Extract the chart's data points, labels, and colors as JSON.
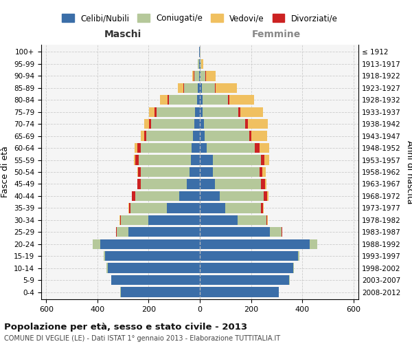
{
  "age_groups": [
    "0-4",
    "5-9",
    "10-14",
    "15-19",
    "20-24",
    "25-29",
    "30-34",
    "35-39",
    "40-44",
    "45-49",
    "50-54",
    "55-59",
    "60-64",
    "65-69",
    "70-74",
    "75-79",
    "80-84",
    "85-89",
    "90-94",
    "95-99",
    "100+"
  ],
  "birth_years": [
    "2008-2012",
    "2003-2007",
    "1998-2002",
    "1993-1997",
    "1988-1992",
    "1983-1987",
    "1978-1982",
    "1973-1977",
    "1968-1972",
    "1963-1967",
    "1958-1962",
    "1953-1957",
    "1948-1952",
    "1943-1947",
    "1938-1942",
    "1933-1937",
    "1928-1932",
    "1923-1927",
    "1918-1922",
    "1913-1917",
    "≤ 1912"
  ],
  "colors": {
    "celibi": "#3b6ea8",
    "coniugati": "#b5c89a",
    "vedovi": "#f0c060",
    "divorziati": "#cc2222"
  },
  "males_celibi": [
    310,
    345,
    360,
    370,
    390,
    280,
    200,
    130,
    80,
    50,
    40,
    35,
    32,
    28,
    22,
    18,
    12,
    8,
    4,
    3,
    2
  ],
  "males_coniugati": [
    1,
    2,
    4,
    5,
    28,
    45,
    108,
    140,
    172,
    182,
    192,
    205,
    198,
    182,
    168,
    150,
    110,
    55,
    18,
    4,
    1
  ],
  "males_vedovi": [
    0,
    0,
    0,
    0,
    1,
    1,
    1,
    1,
    2,
    2,
    4,
    6,
    10,
    12,
    18,
    22,
    32,
    22,
    6,
    1,
    0
  ],
  "males_divorziati": [
    0,
    0,
    0,
    0,
    1,
    2,
    4,
    7,
    13,
    11,
    9,
    11,
    14,
    8,
    9,
    8,
    3,
    2,
    1,
    0,
    0
  ],
  "females_nubili": [
    308,
    350,
    365,
    385,
    430,
    275,
    148,
    98,
    78,
    58,
    52,
    50,
    28,
    20,
    16,
    12,
    10,
    8,
    4,
    2,
    1
  ],
  "females_coniugate": [
    1,
    2,
    4,
    4,
    28,
    44,
    112,
    142,
    172,
    182,
    182,
    188,
    188,
    172,
    162,
    138,
    100,
    52,
    18,
    4,
    1
  ],
  "females_vedove": [
    0,
    0,
    0,
    0,
    1,
    2,
    2,
    2,
    4,
    7,
    14,
    18,
    38,
    62,
    78,
    88,
    98,
    82,
    38,
    7,
    1
  ],
  "females_divorziate": [
    0,
    0,
    0,
    0,
    1,
    2,
    4,
    7,
    14,
    14,
    11,
    14,
    17,
    9,
    11,
    9,
    5,
    2,
    1,
    0,
    0
  ],
  "xlim": 620,
  "title_main": "Popolazione per età, sesso e stato civile - 2013",
  "title_sub": "COMUNE DI VEGLIE (LE) - Dati ISTAT 1° gennaio 2013 - Elaborazione TUTTITALIA.IT",
  "legend_labels": [
    "Celibi/Nubili",
    "Coniugati/e",
    "Vedovi/e",
    "Divorziati/e"
  ],
  "ylabel_left": "Fasce di età",
  "ylabel_right": "Anni di nascita",
  "maschi_label": "Maschi",
  "femmine_label": "Femmine"
}
